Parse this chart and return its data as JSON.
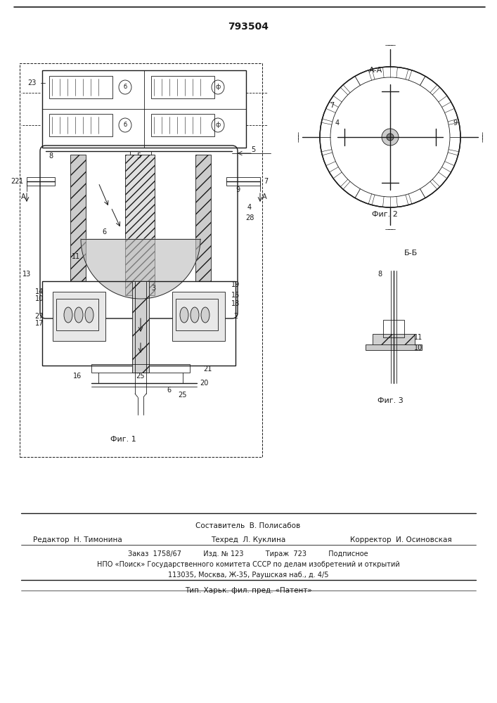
{
  "patent_number": "793504",
  "fig1_caption": "Фиг. 1",
  "fig2_caption": "Фиг. 2",
  "fig3_caption": "Фиг. 3",
  "section_aa": "А-А",
  "section_bb": "Б-Б",
  "bg_color": "#ffffff",
  "line_color": "#1a1a1a",
  "hatch_color": "#333333",
  "footer_line1": "Составитель  В. Полисабов",
  "footer_line2_col1": "Редактор  Н. Тимонина",
  "footer_line2_col2": "Техред  Л. Куклина",
  "footer_line2_col3": "Корректор  И. Осиновская",
  "footer_line3": "Заказ  1758/67          Изд. № 123          Тираж  723          Подписное",
  "footer_line4": "НПО «Поиск» Государственного комитета СССР по делам изобретений и открытий",
  "footer_line5": "113035, Москва, Ж-35, Раушская наб., д. 4/5",
  "footer_line6": "Тип. Харьк. фил. пред. «Патент»"
}
